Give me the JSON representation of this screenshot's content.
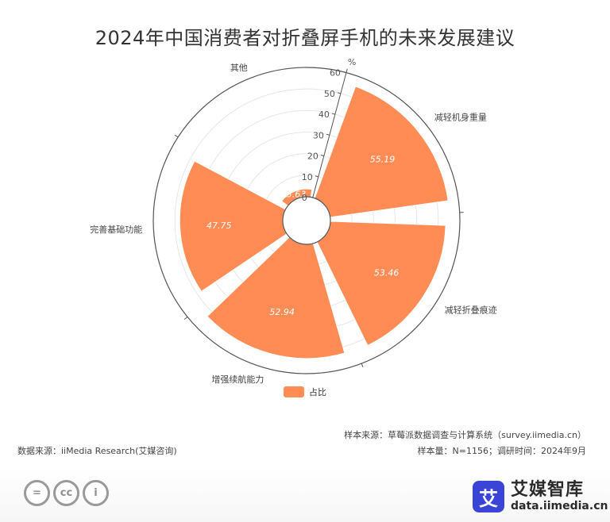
{
  "title": "2024年中国消费者对折叠屏手机的未来发展建议",
  "chart_data": {
    "type": "bar",
    "subtype": "polar-rose",
    "categories": [
      "减轻机身重量",
      "减轻折叠痕迹",
      "增强续航能力",
      "完善基础功能",
      "其他"
    ],
    "series": [
      {
        "name": "占比",
        "values": [
          55.19,
          53.46,
          52.94,
          47.75,
          3.63
        ]
      }
    ],
    "data_labels": [
      "55.19",
      "53.46",
      "52.94",
      "47.75",
      "3.63"
    ],
    "radial_axis": {
      "unit": "%",
      "min": 0,
      "max": 60,
      "ticks": [
        0,
        10,
        20,
        30,
        40,
        50,
        60
      ]
    },
    "legend_position": "bottom-center",
    "colors": {
      "bar": "#FF8C55",
      "axis": "#555555",
      "grid": "#e6e6e6"
    }
  },
  "legend": {
    "label": "占比"
  },
  "notes": {
    "source_left": "数据来源：iiMedia Research(艾媒咨询)",
    "sample_source": "样本来源：草莓派数据调查与计算系统（survey.iimedia.cn）",
    "sample_size": "样本量：N=1156；调研时间：2024年9月"
  },
  "brand": {
    "logo_char": "艾",
    "name": "艾媒智库",
    "url": "data.iimedia.cn"
  },
  "license_icons": [
    {
      "name": "no-derivatives-icon",
      "glyph": "="
    },
    {
      "name": "creative-commons-icon",
      "glyph": "cc"
    },
    {
      "name": "attribution-icon",
      "glyph": "i"
    }
  ]
}
